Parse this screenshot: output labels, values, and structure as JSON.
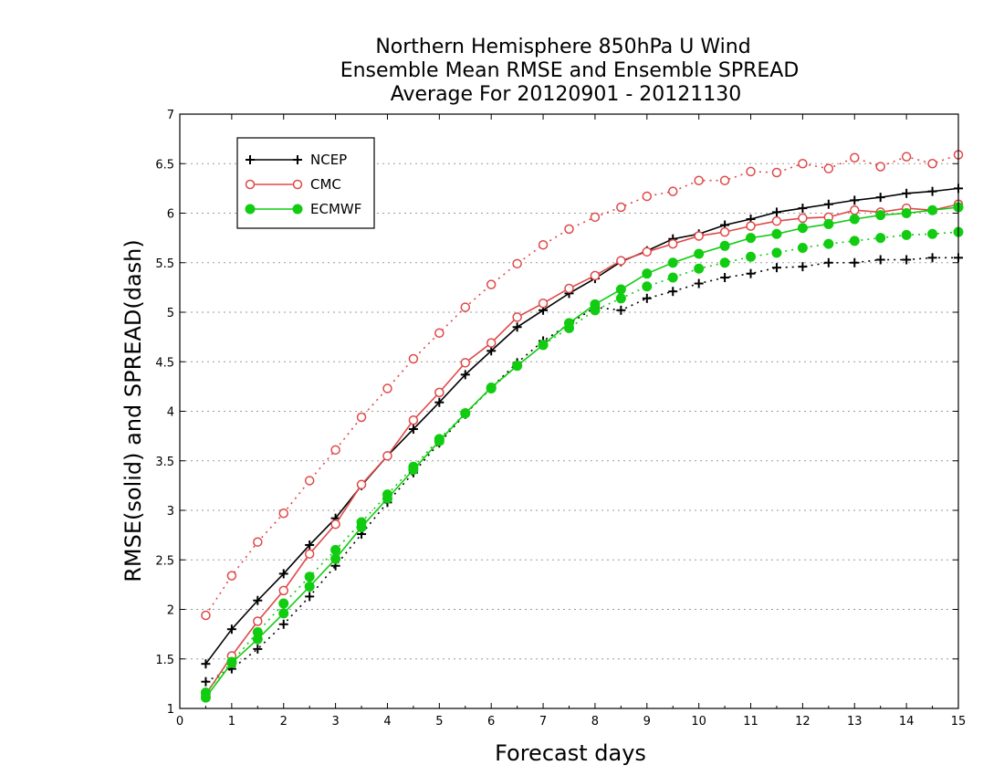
{
  "chart_data": {
    "type": "line",
    "title_lines": [
      "Northern Hemisphere 850hPa U Wind",
      "Ensemble Mean RMSE and Ensemble SPREAD",
      "Average For 20120901 - 20121130"
    ],
    "xlabel": "Forecast days",
    "ylabel": "RMSE(solid) and SPREAD(dash)",
    "xlim": [
      0,
      15
    ],
    "ylim": [
      1,
      7
    ],
    "x_ticks": [
      "0",
      "1",
      "2",
      "3",
      "4",
      "5",
      "6",
      "7",
      "8",
      "9",
      "10",
      "11",
      "12",
      "13",
      "14",
      "15"
    ],
    "y_ticks": [
      "1",
      "1.5",
      "2",
      "2.5",
      "3",
      "3.5",
      "4",
      "4.5",
      "5",
      "5.5",
      "6",
      "6.5",
      "7"
    ],
    "grid": "horizontal dotted",
    "legend_position": "top-left",
    "x": [
      0.5,
      1,
      1.5,
      2,
      2.5,
      3,
      3.5,
      4,
      4.5,
      5,
      5.5,
      6,
      6.5,
      7,
      7.5,
      8,
      8.5,
      9,
      9.5,
      10,
      10.5,
      11,
      11.5,
      12,
      12.5,
      13,
      13.5,
      14,
      14.5,
      15
    ],
    "series": [
      {
        "name": "NCEP",
        "color": "#000000",
        "marker": "plus",
        "rmse": [
          1.45,
          1.8,
          2.09,
          2.36,
          2.65,
          2.92,
          3.25,
          3.55,
          3.82,
          4.09,
          4.37,
          4.61,
          4.85,
          5.02,
          5.19,
          5.34,
          5.51,
          5.62,
          5.74,
          5.79,
          5.88,
          5.94,
          6.01,
          6.05,
          6.09,
          6.13,
          6.16,
          6.2,
          6.22,
          6.25
        ],
        "spread": [
          1.27,
          1.4,
          1.6,
          1.85,
          2.13,
          2.44,
          2.76,
          3.08,
          3.38,
          3.68,
          3.97,
          4.24,
          4.49,
          4.71,
          4.88,
          5.05,
          5.02,
          5.14,
          5.21,
          5.29,
          5.35,
          5.39,
          5.45,
          5.46,
          5.5,
          5.5,
          5.53,
          5.53,
          5.55,
          5.55
        ]
      },
      {
        "name": "CMC",
        "color": "#e04848",
        "marker": "circle",
        "rmse": [
          1.14,
          1.53,
          1.88,
          2.19,
          2.56,
          2.86,
          3.26,
          3.55,
          3.91,
          4.19,
          4.49,
          4.69,
          4.95,
          5.09,
          5.24,
          5.37,
          5.52,
          5.61,
          5.69,
          5.77,
          5.81,
          5.87,
          5.92,
          5.95,
          5.96,
          6.03,
          6.01,
          6.05,
          6.03,
          6.09
        ],
        "spread": [
          1.94,
          2.34,
          2.68,
          2.97,
          3.3,
          3.61,
          3.94,
          4.23,
          4.53,
          4.79,
          5.05,
          5.28,
          5.49,
          5.68,
          5.84,
          5.96,
          6.06,
          6.17,
          6.22,
          6.33,
          6.33,
          6.42,
          6.41,
          6.5,
          6.45,
          6.56,
          6.47,
          6.57,
          6.5,
          6.59
        ]
      },
      {
        "name": "ECMWF",
        "color": "#11cc11",
        "marker": "dot",
        "rmse": [
          1.11,
          1.46,
          1.7,
          1.96,
          2.23,
          2.51,
          2.83,
          3.12,
          3.41,
          3.7,
          3.98,
          4.24,
          4.46,
          4.67,
          4.89,
          5.08,
          5.23,
          5.39,
          5.5,
          5.59,
          5.67,
          5.75,
          5.79,
          5.85,
          5.89,
          5.94,
          5.98,
          6.0,
          6.03,
          6.06
        ],
        "spread": [
          1.16,
          1.47,
          1.77,
          2.06,
          2.33,
          2.6,
          2.88,
          3.16,
          3.44,
          3.72,
          3.98,
          4.23,
          4.46,
          4.67,
          4.84,
          5.02,
          5.14,
          5.26,
          5.35,
          5.44,
          5.5,
          5.56,
          5.6,
          5.65,
          5.69,
          5.72,
          5.75,
          5.78,
          5.79,
          5.81
        ]
      }
    ]
  }
}
